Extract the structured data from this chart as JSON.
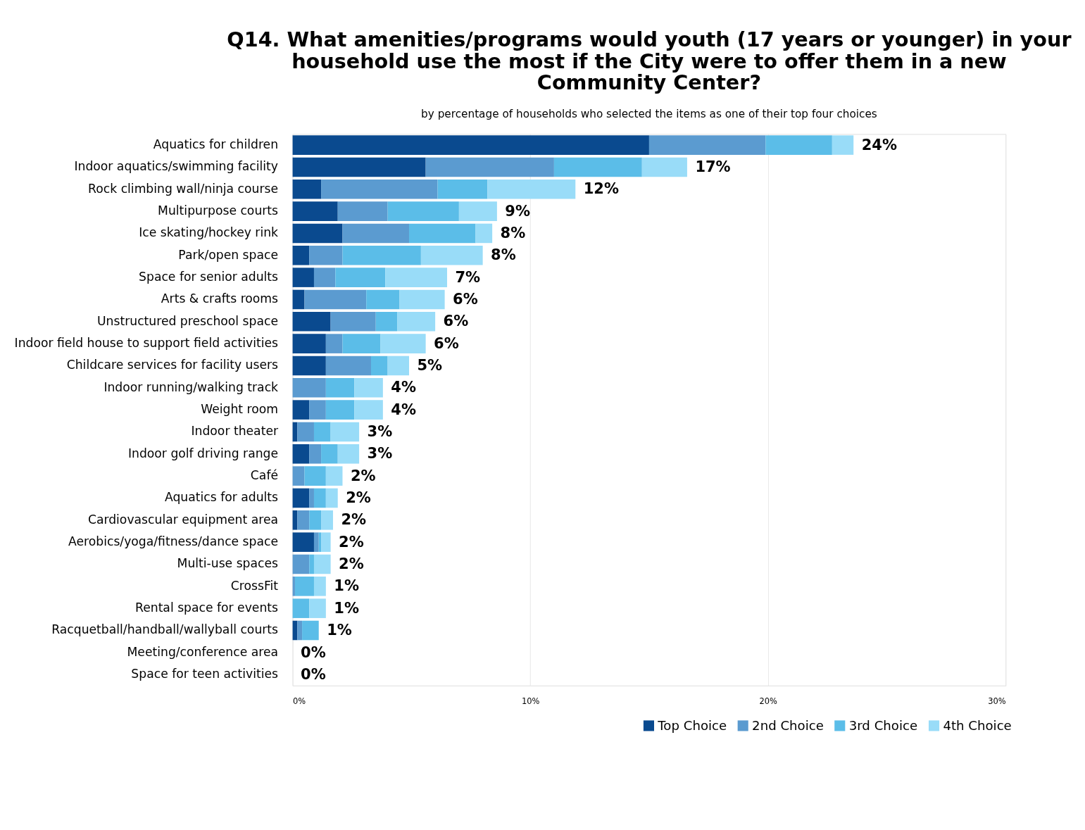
{
  "chart_data": {
    "type": "bar",
    "orientation": "horizontal",
    "stacked": true,
    "title": "Q14. What amenities/programs would youth (17 years or younger) in your household use the most if the City were to offer them in a new Community Center?",
    "subtitle": "by percentage of households who selected the items as one of their top four choices",
    "categories": [
      "Aquatics for children",
      "Indoor aquatics/swimming facility",
      "Rock climbing wall/ninja course",
      "Multipurpose courts",
      "Ice skating/hockey rink",
      "Park/open space",
      "Space for senior adults",
      "Arts & crafts rooms",
      "Unstructured preschool space",
      "Indoor field house to support field activities",
      "Childcare services for facility users",
      "Indoor running/walking track",
      "Weight room",
      "Indoor theater",
      "Indoor golf driving range",
      "Café",
      "Aquatics for adults",
      "Cardiovascular equipment area",
      "Aerobics/yoga/fitness/dance space",
      "Multi-use spaces",
      "CrossFit",
      "Rental space for events",
      "Racquetball/handball/wallyball courts",
      "Meeting/conference area",
      "Space for teen activities"
    ],
    "series": [
      {
        "name": "Top Choice",
        "color": "#0a4a8f",
        "values": [
          15.0,
          5.6,
          1.2,
          1.9,
          2.1,
          0.7,
          0.9,
          0.5,
          1.6,
          1.4,
          1.4,
          0,
          0.7,
          0.2,
          0.7,
          0,
          0.7,
          0.2,
          0.9,
          0,
          0,
          0,
          0.2,
          0,
          0
        ]
      },
      {
        "name": "2nd Choice",
        "color": "#5b9bd0",
        "values": [
          4.9,
          5.4,
          4.9,
          2.1,
          2.8,
          1.4,
          0.9,
          2.6,
          1.9,
          0.7,
          1.9,
          1.4,
          0.7,
          0.7,
          0.5,
          0.5,
          0.2,
          0.5,
          0.2,
          0.7,
          0.1,
          0,
          0.2,
          0,
          0
        ]
      },
      {
        "name": "3rd Choice",
        "color": "#5bbde8",
        "values": [
          2.8,
          3.7,
          2.1,
          3.0,
          2.8,
          3.3,
          2.1,
          1.4,
          0.9,
          1.6,
          0.7,
          1.2,
          1.2,
          0.7,
          0.7,
          0.9,
          0.5,
          0.5,
          0.1,
          0.2,
          0.8,
          0.7,
          0.7,
          0,
          0
        ]
      },
      {
        "name": "4th Choice",
        "color": "#99dcf8",
        "values": [
          0.9,
          1.9,
          3.7,
          1.6,
          0.7,
          2.6,
          2.6,
          1.9,
          1.6,
          1.9,
          0.9,
          1.2,
          1.2,
          1.2,
          0.9,
          0.7,
          0.5,
          0.5,
          0.4,
          0.7,
          0.5,
          0.7,
          0,
          0,
          0
        ]
      }
    ],
    "totals": [
      "24%",
      "17%",
      "12%",
      "9%",
      "8%",
      "8%",
      "7%",
      "6%",
      "6%",
      "6%",
      "5%",
      "4%",
      "4%",
      "3%",
      "3%",
      "2%",
      "2%",
      "2%",
      "2%",
      "2%",
      "1%",
      "1%",
      "1%",
      "0%",
      "0%"
    ],
    "xlim": [
      0,
      30
    ],
    "xticks": [
      {
        "value": 0,
        "label": "0%"
      },
      {
        "value": 10,
        "label": "10%"
      },
      {
        "value": 20,
        "label": "20%"
      },
      {
        "value": 30,
        "label": "30%"
      }
    ],
    "grid": "x",
    "legend": "bottom right"
  }
}
